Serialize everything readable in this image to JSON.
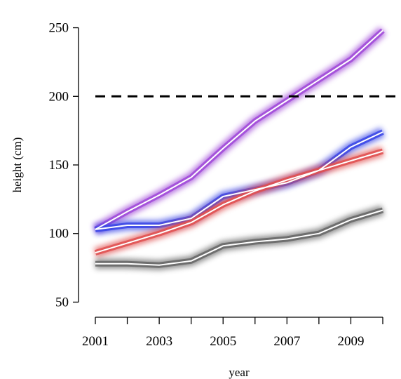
{
  "chart_data": {
    "type": "line",
    "title": "",
    "xlabel": "year",
    "ylabel": "height (cm)",
    "xlim": [
      2001,
      2010
    ],
    "ylim": [
      40,
      260
    ],
    "x": [
      2001,
      2002,
      2003,
      2004,
      2005,
      2006,
      2007,
      2008,
      2009,
      2010
    ],
    "x_ticks": [
      2001,
      2002,
      2003,
      2004,
      2005,
      2006,
      2007,
      2008,
      2009,
      2010
    ],
    "x_tick_labels": [
      "2001",
      "",
      "2003",
      "",
      "2005",
      "",
      "2007",
      "",
      "2009",
      ""
    ],
    "y_ticks": [
      50,
      100,
      150,
      200,
      250
    ],
    "y_tick_labels": [
      "50",
      "100",
      "150",
      "200",
      "250"
    ],
    "grid": false,
    "legend": "none",
    "reference_line": {
      "y": 200,
      "style": "dashed",
      "color": "#000000"
    },
    "series": [
      {
        "color": "#a04ad8",
        "values": [
          103,
          116,
          128,
          141,
          162,
          182,
          197,
          212,
          227,
          248
        ]
      },
      {
        "color": "#3a46e6",
        "values": [
          103,
          106,
          106,
          111,
          127,
          132,
          137,
          146,
          163,
          174
        ]
      },
      {
        "color": "#e05050",
        "values": [
          86,
          93,
          100,
          108,
          121,
          131,
          139,
          146,
          153,
          160
        ]
      },
      {
        "color": "#666666",
        "values": [
          78,
          78,
          77,
          80,
          91,
          94,
          96,
          100,
          110,
          117
        ]
      }
    ]
  }
}
